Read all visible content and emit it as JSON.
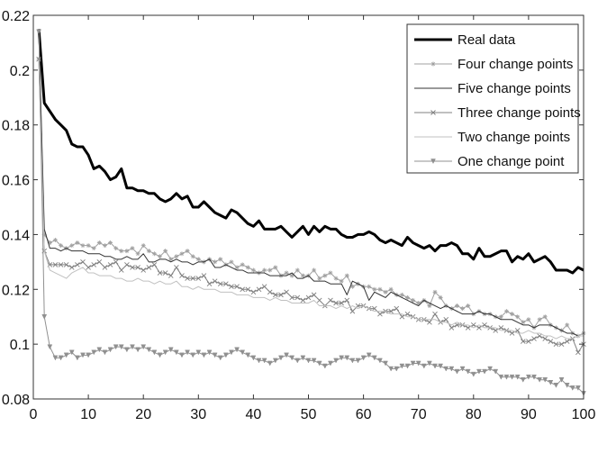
{
  "chart_data": {
    "type": "line",
    "title": "",
    "xlabel": "",
    "ylabel": "",
    "xlim": [
      0,
      100
    ],
    "ylim": [
      0.08,
      0.22
    ],
    "xticks": [
      "0",
      "10",
      "20",
      "30",
      "40",
      "50",
      "60",
      "70",
      "80",
      "90",
      "100"
    ],
    "yticks": [
      "0.08",
      "0.1",
      "0.12",
      "0.14",
      "0.16",
      "0.18",
      "0.2",
      "0.22"
    ],
    "grid": false,
    "legend_position": "top-right",
    "x_start": 1,
    "series": [
      {
        "name": "Real data",
        "color": "#000000",
        "marker": "none",
        "values": [
          0.215,
          0.188,
          0.185,
          0.182,
          0.18,
          0.178,
          0.173,
          0.172,
          0.172,
          0.169,
          0.164,
          0.165,
          0.163,
          0.16,
          0.161,
          0.164,
          0.157,
          0.157,
          0.156,
          0.156,
          0.155,
          0.155,
          0.153,
          0.152,
          0.153,
          0.155,
          0.153,
          0.154,
          0.15,
          0.15,
          0.152,
          0.15,
          0.148,
          0.147,
          0.146,
          0.149,
          0.148,
          0.146,
          0.144,
          0.143,
          0.145,
          0.142,
          0.142,
          0.142,
          0.143,
          0.141,
          0.139,
          0.141,
          0.143,
          0.14,
          0.143,
          0.141,
          0.143,
          0.142,
          0.142,
          0.14,
          0.139,
          0.139,
          0.14,
          0.14,
          0.141,
          0.14,
          0.138,
          0.137,
          0.138,
          0.137,
          0.136,
          0.139,
          0.137,
          0.136,
          0.135,
          0.136,
          0.134,
          0.136,
          0.136,
          0.137,
          0.136,
          0.133,
          0.133,
          0.131,
          0.135,
          0.132,
          0.132,
          0.133,
          0.134,
          0.134,
          0.13,
          0.132,
          0.131,
          0.133,
          0.13,
          0.131,
          0.132,
          0.13,
          0.127,
          0.127,
          0.127,
          0.126,
          0.128,
          0.127
        ]
      },
      {
        "name": "Four change points",
        "color": "#a0a0a0",
        "marker": "star",
        "values": [
          0.204,
          0.14,
          0.137,
          0.138,
          0.136,
          0.135,
          0.136,
          0.137,
          0.136,
          0.136,
          0.135,
          0.137,
          0.136,
          0.137,
          0.135,
          0.134,
          0.134,
          0.135,
          0.133,
          0.136,
          0.134,
          0.133,
          0.132,
          0.134,
          0.131,
          0.132,
          0.133,
          0.134,
          0.132,
          0.131,
          0.13,
          0.131,
          0.13,
          0.131,
          0.129,
          0.13,
          0.128,
          0.129,
          0.128,
          0.127,
          0.126,
          0.127,
          0.127,
          0.128,
          0.125,
          0.126,
          0.125,
          0.127,
          0.125,
          0.125,
          0.127,
          0.124,
          0.125,
          0.126,
          0.124,
          0.123,
          0.125,
          0.121,
          0.122,
          0.121,
          0.121,
          0.12,
          0.12,
          0.119,
          0.12,
          0.118,
          0.118,
          0.117,
          0.116,
          0.115,
          0.116,
          0.114,
          0.119,
          0.117,
          0.114,
          0.113,
          0.114,
          0.113,
          0.114,
          0.111,
          0.112,
          0.111,
          0.111,
          0.11,
          0.11,
          0.112,
          0.111,
          0.11,
          0.108,
          0.109,
          0.106,
          0.109,
          0.11,
          0.107,
          0.106,
          0.105,
          0.107,
          0.104,
          0.103,
          0.104
        ]
      },
      {
        "name": "Five change points",
        "color": "#333333",
        "marker": "none",
        "values": [
          0.214,
          0.142,
          0.135,
          0.135,
          0.134,
          0.135,
          0.134,
          0.134,
          0.134,
          0.133,
          0.133,
          0.133,
          0.132,
          0.132,
          0.131,
          0.131,
          0.132,
          0.131,
          0.131,
          0.133,
          0.13,
          0.13,
          0.131,
          0.131,
          0.13,
          0.131,
          0.13,
          0.13,
          0.129,
          0.13,
          0.13,
          0.131,
          0.128,
          0.128,
          0.129,
          0.128,
          0.127,
          0.127,
          0.126,
          0.126,
          0.126,
          0.126,
          0.125,
          0.125,
          0.125,
          0.125,
          0.126,
          0.124,
          0.124,
          0.125,
          0.123,
          0.123,
          0.123,
          0.122,
          0.122,
          0.122,
          0.118,
          0.123,
          0.122,
          0.121,
          0.116,
          0.119,
          0.118,
          0.117,
          0.119,
          0.118,
          0.117,
          0.116,
          0.115,
          0.114,
          0.116,
          0.115,
          0.114,
          0.113,
          0.114,
          0.113,
          0.112,
          0.111,
          0.111,
          0.111,
          0.112,
          0.111,
          0.111,
          0.11,
          0.109,
          0.109,
          0.109,
          0.108,
          0.107,
          0.107,
          0.106,
          0.107,
          0.107,
          0.107,
          0.106,
          0.105,
          0.104,
          0.104,
          0.103,
          0.103
        ]
      },
      {
        "name": "Three change points",
        "color": "#808080",
        "marker": "x",
        "values": [
          0.204,
          0.134,
          0.129,
          0.129,
          0.129,
          0.129,
          0.128,
          0.129,
          0.13,
          0.128,
          0.129,
          0.13,
          0.128,
          0.129,
          0.13,
          0.127,
          0.129,
          0.128,
          0.128,
          0.127,
          0.128,
          0.129,
          0.126,
          0.126,
          0.125,
          0.128,
          0.125,
          0.124,
          0.124,
          0.124,
          0.125,
          0.122,
          0.123,
          0.122,
          0.122,
          0.121,
          0.121,
          0.12,
          0.12,
          0.119,
          0.12,
          0.121,
          0.119,
          0.118,
          0.118,
          0.119,
          0.117,
          0.117,
          0.116,
          0.117,
          0.118,
          0.116,
          0.114,
          0.116,
          0.115,
          0.115,
          0.116,
          0.112,
          0.114,
          0.114,
          0.113,
          0.113,
          0.111,
          0.112,
          0.112,
          0.113,
          0.11,
          0.111,
          0.11,
          0.109,
          0.109,
          0.108,
          0.111,
          0.108,
          0.109,
          0.106,
          0.107,
          0.107,
          0.106,
          0.107,
          0.106,
          0.107,
          0.106,
          0.105,
          0.106,
          0.105,
          0.104,
          0.105,
          0.101,
          0.101,
          0.102,
          0.103,
          0.102,
          0.101,
          0.1,
          0.1,
          0.101,
          0.102,
          0.097,
          0.1
        ]
      },
      {
        "name": "Two change points",
        "color": "#c0c0c0",
        "marker": "none",
        "values": [
          0.204,
          0.134,
          0.127,
          0.126,
          0.125,
          0.124,
          0.126,
          0.127,
          0.128,
          0.126,
          0.126,
          0.125,
          0.125,
          0.125,
          0.124,
          0.124,
          0.123,
          0.123,
          0.124,
          0.123,
          0.123,
          0.122,
          0.123,
          0.122,
          0.122,
          0.123,
          0.121,
          0.121,
          0.12,
          0.121,
          0.12,
          0.12,
          0.12,
          0.119,
          0.119,
          0.119,
          0.118,
          0.118,
          0.118,
          0.117,
          0.117,
          0.117,
          0.116,
          0.117,
          0.116,
          0.116,
          0.115,
          0.115,
          0.115,
          0.115,
          0.116,
          0.114,
          0.114,
          0.114,
          0.113,
          0.114,
          0.113,
          0.114,
          0.113,
          0.114,
          0.113,
          0.112,
          0.112,
          0.112,
          0.111,
          0.111,
          0.111,
          0.11,
          0.11,
          0.109,
          0.109,
          0.109,
          0.109,
          0.108,
          0.108,
          0.107,
          0.108,
          0.107,
          0.107,
          0.106,
          0.107,
          0.106,
          0.106,
          0.106,
          0.105,
          0.105,
          0.105,
          0.104,
          0.104,
          0.105,
          0.104,
          0.104,
          0.103,
          0.103,
          0.102,
          0.103,
          0.102,
          0.102,
          0.103,
          0.103
        ]
      },
      {
        "name": "One change point",
        "color": "#909090",
        "marker": "triangle-down",
        "values": [
          0.214,
          0.11,
          0.099,
          0.095,
          0.095,
          0.096,
          0.097,
          0.095,
          0.096,
          0.096,
          0.097,
          0.098,
          0.097,
          0.098,
          0.099,
          0.099,
          0.098,
          0.099,
          0.098,
          0.099,
          0.098,
          0.097,
          0.096,
          0.097,
          0.098,
          0.097,
          0.096,
          0.097,
          0.096,
          0.097,
          0.096,
          0.097,
          0.096,
          0.095,
          0.096,
          0.097,
          0.098,
          0.097,
          0.096,
          0.095,
          0.094,
          0.094,
          0.093,
          0.094,
          0.095,
          0.096,
          0.095,
          0.094,
          0.095,
          0.094,
          0.094,
          0.093,
          0.092,
          0.093,
          0.094,
          0.095,
          0.095,
          0.094,
          0.094,
          0.095,
          0.096,
          0.095,
          0.094,
          0.093,
          0.091,
          0.091,
          0.092,
          0.092,
          0.093,
          0.093,
          0.092,
          0.093,
          0.092,
          0.092,
          0.091,
          0.091,
          0.09,
          0.091,
          0.09,
          0.089,
          0.09,
          0.09,
          0.091,
          0.09,
          0.088,
          0.088,
          0.088,
          0.088,
          0.087,
          0.088,
          0.088,
          0.087,
          0.087,
          0.086,
          0.085,
          0.087,
          0.085,
          0.084,
          0.084,
          0.082
        ]
      }
    ]
  }
}
